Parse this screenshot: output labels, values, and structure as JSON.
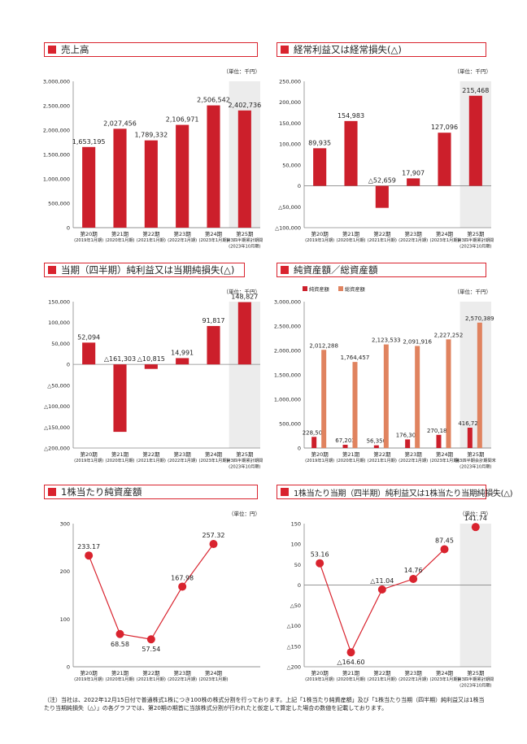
{
  "note": "（注）当社は、2022年12月15日付で普通株式1株につき100株の株式分割を行っております。上記「1株当たり純資産額」及び「1株当たり当期（四半期）純利益又は1株当たり当期純損失（△）」の各グラフでは、第20期の期首に当該株式分割が行われたと仮定して算定した場合の数値を記載しております。",
  "colors": {
    "bar": "#cc1f2b",
    "bar_light": "#e0835f",
    "line": "#d9232e",
    "shade": "#ececec",
    "grid": "#999999",
    "border": "#d9232e"
  },
  "charts": [
    {
      "title": "売上高",
      "unit": "（単位：千円）",
      "chart_data": {
        "type": "bar",
        "categories": [
          [
            "第20期",
            "(2019年1月期)"
          ],
          [
            "第21期",
            "(2020年1月期)"
          ],
          [
            "第22期",
            "(2021年1月期)"
          ],
          [
            "第23期",
            "(2022年1月期)"
          ],
          [
            "第24期",
            "(2023年1月期)"
          ],
          [
            "第25期",
            "第3四半期累計期間",
            "(2023年10月期)"
          ]
        ],
        "series": [
          {
            "values": [
              1653195,
              2027456,
              1789332,
              2106971,
              2506542,
              2402736
            ],
            "labels": [
              "1,653,195",
              "2,027,456",
              "1,789,332",
              "2,106,971",
              "2,506,542",
              "2,402,736"
            ]
          }
        ],
        "yticks": [
          {
            "v": 0,
            "t": "0"
          },
          {
            "v": 500000,
            "t": "500,000"
          },
          {
            "v": 1000000,
            "t": "1,000,000"
          },
          {
            "v": 1500000,
            "t": "1,500,000"
          },
          {
            "v": 2000000,
            "t": "2,000,000"
          },
          {
            "v": 2500000,
            "t": "2,500,000"
          },
          {
            "v": 3000000,
            "t": "3,000,000"
          }
        ],
        "ylim": [
          0,
          3000000
        ],
        "shaded_last": true
      }
    },
    {
      "title": "経常利益又は経常損失(△)",
      "unit": "（単位：千円）",
      "chart_data": {
        "type": "bar",
        "categories": [
          [
            "第20期",
            "(2019年1月期)"
          ],
          [
            "第21期",
            "(2020年1月期)"
          ],
          [
            "第22期",
            "(2021年1月期)"
          ],
          [
            "第23期",
            "(2022年1月期)"
          ],
          [
            "第24期",
            "(2023年1月期)"
          ],
          [
            "第25期",
            "第3四半期累計期間",
            "(2023年10月期)"
          ]
        ],
        "series": [
          {
            "values": [
              89935,
              154983,
              -52659,
              17907,
              127096,
              215468
            ],
            "labels": [
              "89,935",
              "154,983",
              "△52,659",
              "17,907",
              "127,096",
              "215,468"
            ]
          }
        ],
        "yticks": [
          {
            "v": -100000,
            "t": "△100,000"
          },
          {
            "v": -50000,
            "t": "△50,000"
          },
          {
            "v": 0,
            "t": "0"
          },
          {
            "v": 50000,
            "t": "50,000"
          },
          {
            "v": 100000,
            "t": "100,000"
          },
          {
            "v": 150000,
            "t": "150,000"
          },
          {
            "v": 200000,
            "t": "200,000"
          },
          {
            "v": 250000,
            "t": "250,000"
          }
        ],
        "ylim": [
          -100000,
          250000
        ],
        "shaded_last": true
      }
    },
    {
      "title": "当期（四半期）純利益又は当期純損失(△)",
      "unit": "（単位：千円）",
      "chart_data": {
        "type": "bar",
        "categories": [
          [
            "第20期",
            "(2019年1月期)"
          ],
          [
            "第21期",
            "(2020年1月期)"
          ],
          [
            "第22期",
            "(2021年1月期)"
          ],
          [
            "第23期",
            "(2022年1月期)"
          ],
          [
            "第24期",
            "(2023年1月期)"
          ],
          [
            "第25期",
            "第3四半期累計期間",
            "(2023年10月期)"
          ]
        ],
        "series": [
          {
            "values": [
              52094,
              -161303,
              -10815,
              14991,
              91817,
              148827
            ],
            "labels": [
              "52,094",
              "△161,303",
              "△10,815",
              "14,991",
              "91,817",
              "148,827"
            ]
          }
        ],
        "yticks": [
          {
            "v": -200000,
            "t": "△200,000"
          },
          {
            "v": -150000,
            "t": "△150,000"
          },
          {
            "v": -100000,
            "t": "△100,000"
          },
          {
            "v": -50000,
            "t": "△50,000"
          },
          {
            "v": 0,
            "t": "0"
          },
          {
            "v": 50000,
            "t": "50,000"
          },
          {
            "v": 100000,
            "t": "100,000"
          },
          {
            "v": 150000,
            "t": "150,000"
          }
        ],
        "ylim": [
          -200000,
          150000
        ],
        "shaded_last": true
      }
    },
    {
      "title": "純資産額／総資産額",
      "unit": "（単位：千円）",
      "chart_data": {
        "type": "bar",
        "categories": [
          [
            "第20期",
            "(2019年1月期)"
          ],
          [
            "第21期",
            "(2020年1月期)"
          ],
          [
            "第22期",
            "(2021年1月期)"
          ],
          [
            "第23期",
            "(2022年1月期)"
          ],
          [
            "第24期",
            "(2023年1月期)"
          ],
          [
            "第25期",
            "第3四半期会計期間末",
            "(2023年10月期)"
          ]
        ],
        "series": [
          {
            "name": "純資産額",
            "values": [
              228503,
              67203,
              56350,
              176307,
              270182,
              416723
            ],
            "labels": [
              "228,503",
              "67,203",
              "56,350",
              "176,307",
              "270,182",
              "416,723"
            ]
          },
          {
            "name": "総資産額",
            "values": [
              2012288,
              1764457,
              2123533,
              2091916,
              2227252,
              2570389
            ],
            "labels": [
              "2,012,288",
              "1,764,457",
              "2,123,533",
              "2,091,916",
              "2,227,252",
              "2,570,389"
            ]
          }
        ],
        "yticks": [
          {
            "v": 0,
            "t": "0"
          },
          {
            "v": 500000,
            "t": "500,000"
          },
          {
            "v": 1000000,
            "t": "1,000,000"
          },
          {
            "v": 1500000,
            "t": "1,500,000"
          },
          {
            "v": 2000000,
            "t": "2,000,000"
          },
          {
            "v": 2500000,
            "t": "2,500,000"
          },
          {
            "v": 3000000,
            "t": "3,000,000"
          }
        ],
        "ylim": [
          0,
          3000000
        ],
        "shaded_last": true,
        "legend": "top-left"
      }
    },
    {
      "title": "1株当たり純資産額",
      "unit": "（単位：円）",
      "chart_data": {
        "type": "line",
        "categories": [
          [
            "第20期",
            "(2019年1月期)"
          ],
          [
            "第21期",
            "(2020年1月期)"
          ],
          [
            "第22期",
            "(2021年1月期)"
          ],
          [
            "第23期",
            "(2022年1月期)"
          ],
          [
            "第24期",
            "(2023年1月期)"
          ]
        ],
        "series": [
          {
            "values": [
              233.17,
              68.58,
              57.54,
              167.98,
              257.32
            ],
            "labels": [
              "233.17",
              "68.58",
              "57.54",
              "167.98",
              "257.32"
            ]
          }
        ],
        "yticks": [
          {
            "v": 0,
            "t": "0"
          },
          {
            "v": 100,
            "t": "100"
          },
          {
            "v": 200,
            "t": "200"
          },
          {
            "v": 300,
            "t": "300"
          }
        ],
        "ylim": [
          0,
          300
        ],
        "shaded_last": false,
        "ncols": 6
      }
    },
    {
      "title": "1株当たり当期（四半期）純利益又は1株当たり当期純損失(△)",
      "unit": "（単位：円）",
      "chart_data": {
        "type": "line",
        "categories": [
          [
            "第20期",
            "(2019年1月期)"
          ],
          [
            "第21期",
            "(2020年1月期)"
          ],
          [
            "第22期",
            "(2021年1月期)"
          ],
          [
            "第23期",
            "(2022年1月期)"
          ],
          [
            "第24期",
            "(2023年1月期)"
          ],
          [
            "第25期",
            "第3四半期累計期間",
            "(2023年10月期)"
          ]
        ],
        "series": [
          {
            "values": [
              53.16,
              -164.6,
              -11.04,
              14.76,
              87.45,
              141.74
            ],
            "labels": [
              "53.16",
              "△164.60",
              "△11.04",
              "14.76",
              "87.45",
              "141.74"
            ]
          }
        ],
        "yticks": [
          {
            "v": -200,
            "t": "△200"
          },
          {
            "v": -150,
            "t": "△150"
          },
          {
            "v": -100,
            "t": "△100"
          },
          {
            "v": -50,
            "t": "△50"
          },
          {
            "v": 0,
            "t": "0"
          },
          {
            "v": 50,
            "t": "50"
          },
          {
            "v": 100,
            "t": "100"
          },
          {
            "v": 150,
            "t": "150"
          }
        ],
        "ylim": [
          -200,
          150
        ],
        "shaded_last": true,
        "last_point_only": true
      }
    }
  ]
}
